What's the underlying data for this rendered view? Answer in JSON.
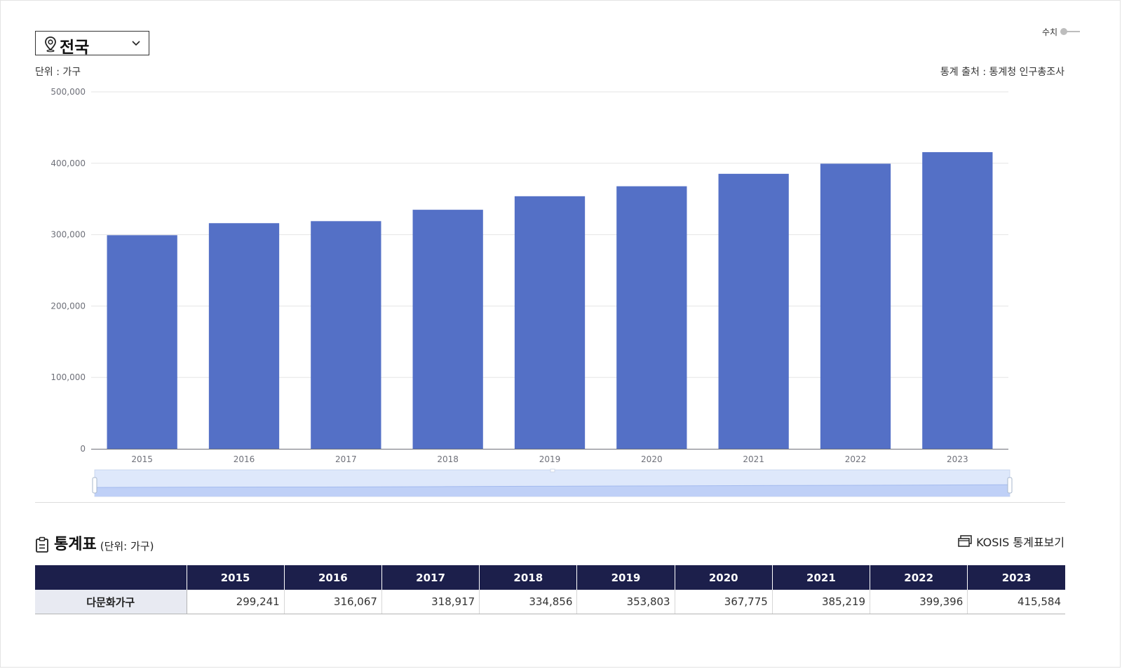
{
  "region_selector": {
    "value": "전국",
    "pin_icon": "location-pin-icon",
    "dropdown_icon": "chevron-down-icon"
  },
  "value_toggle": {
    "label": "수치",
    "state": "off"
  },
  "unit_label": "단위 : 가구",
  "source_label": "통계 출처 : 통계청 인구총조사",
  "colors": {
    "bar": "#5470c6",
    "table_header": "#1c1f4b",
    "row_header": "#e8eaf2",
    "zoom_fill": "#dbe5fb"
  },
  "chart_data": {
    "type": "bar",
    "categories": [
      "2015",
      "2016",
      "2017",
      "2018",
      "2019",
      "2020",
      "2021",
      "2022",
      "2023"
    ],
    "series": [
      {
        "name": "다문화가구",
        "values": [
          299241,
          316067,
          318917,
          334856,
          353803,
          367775,
          385219,
          399396,
          415584
        ]
      }
    ],
    "ylim": [
      0,
      500000
    ],
    "yticks": [
      "0",
      "100,000",
      "200,000",
      "300,000",
      "400,000",
      "500,000"
    ],
    "grid": true,
    "zoom_range": [
      "2015",
      "2023"
    ]
  },
  "stat_table": {
    "title": "통계표",
    "unit": "(단위: 가구)",
    "icon": "clipboard-icon",
    "kosis_link": {
      "label": "KOSIS 통계표보기",
      "icon": "window-icon"
    },
    "columns": [
      "2015",
      "2016",
      "2017",
      "2018",
      "2019",
      "2020",
      "2021",
      "2022",
      "2023"
    ],
    "rows": [
      {
        "label": "다문화가구",
        "values": [
          "299,241",
          "316,067",
          "318,917",
          "334,856",
          "353,803",
          "367,775",
          "385,219",
          "399,396",
          "415,584"
        ]
      }
    ]
  }
}
